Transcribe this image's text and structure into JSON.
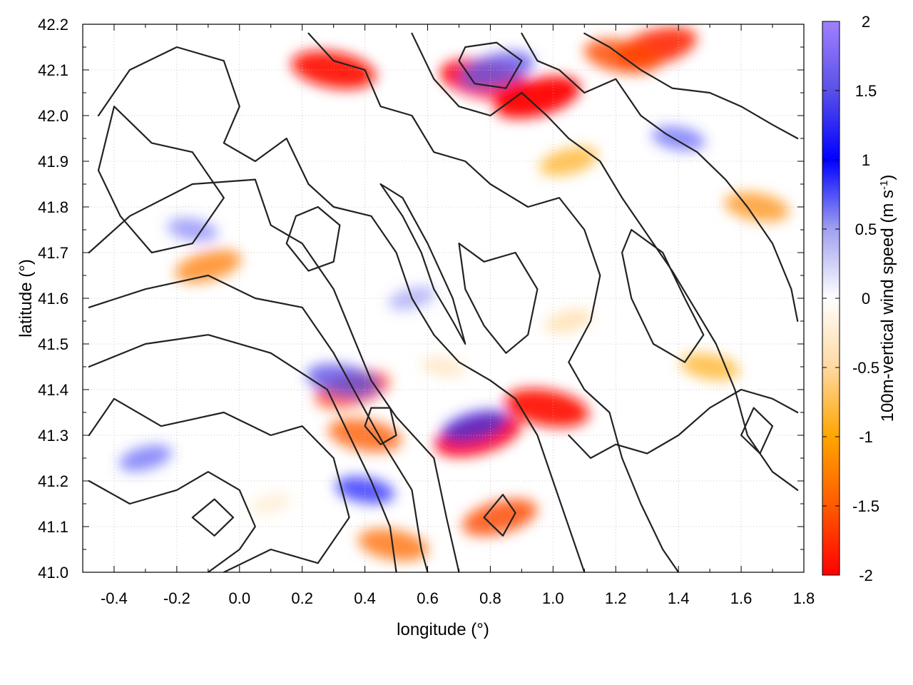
{
  "chart_data": {
    "type": "heatmap",
    "title": "",
    "xlabel": "longitude (°)",
    "ylabel": "latitude (°)",
    "colorbar_label": "100m-vertical wind speed (m s-1)",
    "colorbar_label_parts": {
      "main": "100m-vertical wind speed (m s",
      "sup": "-1",
      "close": ")"
    },
    "xlim": [
      -0.5,
      1.8
    ],
    "ylim": [
      41.0,
      42.2
    ],
    "clim": [
      -2,
      2
    ],
    "x_ticks": [
      -0.4,
      -0.2,
      0.0,
      0.2,
      0.4,
      0.6,
      0.8,
      1.0,
      1.2,
      1.4,
      1.6,
      1.8
    ],
    "x_tick_labels": [
      "-0.4",
      "-0.2",
      "0.0",
      "0.2",
      "0.4",
      "0.6",
      "0.8",
      "1.0",
      "1.2",
      "1.4",
      "1.6",
      "1.8"
    ],
    "y_ticks": [
      41.0,
      41.1,
      41.2,
      41.3,
      41.4,
      41.5,
      41.6,
      41.7,
      41.8,
      41.9,
      42.0,
      42.1,
      42.2
    ],
    "y_tick_labels": [
      "41.0",
      "41.1",
      "41.2",
      "41.3",
      "41.4",
      "41.5",
      "41.6",
      "41.7",
      "41.8",
      "41.9",
      "42.0",
      "42.1",
      "42.2"
    ],
    "cbar_ticks": [
      -2,
      -1.5,
      -1,
      -0.5,
      0,
      0.5,
      1,
      1.5,
      2
    ],
    "cbar_tick_labels": [
      "-2",
      "-1.5",
      "-1",
      "-0.5",
      "0",
      "0.5",
      "1",
      "1.5",
      "2"
    ],
    "colormap": [
      {
        "value": -2,
        "color": "#ff0000"
      },
      {
        "value": -1.5,
        "color": "#ff5a00"
      },
      {
        "value": -1,
        "color": "#ffa500"
      },
      {
        "value": -0.5,
        "color": "#ffd8a0"
      },
      {
        "value": 0,
        "color": "#ffffff"
      },
      {
        "value": 0.5,
        "color": "#a0a0f0"
      },
      {
        "value": 1,
        "color": "#0000ff"
      },
      {
        "value": 1.5,
        "color": "#5a50e8"
      },
      {
        "value": 2,
        "color": "#a080ff"
      }
    ],
    "grid": true,
    "contour_color": "#222222",
    "hotspots": [
      {
        "lon": 0.78,
        "lat": 42.08,
        "value": -2.0
      },
      {
        "lon": 0.95,
        "lat": 42.04,
        "value": -2.0
      },
      {
        "lon": 0.3,
        "lat": 42.1,
        "value": -1.9
      },
      {
        "lon": 1.33,
        "lat": 42.15,
        "value": -1.8
      },
      {
        "lon": 1.22,
        "lat": 42.13,
        "value": -1.6
      },
      {
        "lon": 0.76,
        "lat": 41.3,
        "value": -2.0
      },
      {
        "lon": 0.98,
        "lat": 41.36,
        "value": -1.9
      },
      {
        "lon": 0.36,
        "lat": 41.4,
        "value": -1.6
      },
      {
        "lon": 0.4,
        "lat": 41.3,
        "value": -1.5
      },
      {
        "lon": 0.83,
        "lat": 41.12,
        "value": -1.6
      },
      {
        "lon": 0.49,
        "lat": 41.06,
        "value": -1.4
      },
      {
        "lon": -0.1,
        "lat": 41.67,
        "value": -1.3
      },
      {
        "lon": 1.65,
        "lat": 41.8,
        "value": -1.2
      },
      {
        "lon": 1.05,
        "lat": 41.9,
        "value": -1.0
      },
      {
        "lon": 1.5,
        "lat": 41.45,
        "value": -1.0
      },
      {
        "lon": 0.82,
        "lat": 42.1,
        "value": 1.6
      },
      {
        "lon": 0.33,
        "lat": 41.42,
        "value": 1.5
      },
      {
        "lon": 0.75,
        "lat": 41.32,
        "value": 1.3
      },
      {
        "lon": 0.4,
        "lat": 41.18,
        "value": 1.0
      },
      {
        "lon": -0.3,
        "lat": 41.25,
        "value": 0.8
      },
      {
        "lon": 1.4,
        "lat": 41.95,
        "value": 0.8
      },
      {
        "lon": 0.55,
        "lat": 41.6,
        "value": 0.6
      },
      {
        "lon": -0.15,
        "lat": 41.75,
        "value": 0.7
      },
      {
        "lon": 1.05,
        "lat": 41.55,
        "value": -0.6
      },
      {
        "lon": 0.65,
        "lat": 41.45,
        "value": -0.5
      },
      {
        "lon": 0.1,
        "lat": 41.15,
        "value": -0.4
      }
    ],
    "contours": [
      [
        [
          -0.05,
          41.0
        ],
        [
          0.1,
          41.05
        ],
        [
          0.25,
          41.02
        ],
        [
          0.35,
          41.12
        ],
        [
          0.3,
          41.25
        ],
        [
          0.2,
          41.32
        ],
        [
          0.1,
          41.3
        ],
        [
          -0.05,
          41.35
        ],
        [
          -0.25,
          41.32
        ],
        [
          -0.4,
          41.38
        ],
        [
          -0.48,
          41.3
        ]
      ],
      [
        [
          -0.48,
          41.45
        ],
        [
          -0.3,
          41.5
        ],
        [
          -0.1,
          41.52
        ],
        [
          0.1,
          41.48
        ],
        [
          0.28,
          41.4
        ],
        [
          0.35,
          41.3
        ],
        [
          0.42,
          41.2
        ],
        [
          0.48,
          41.1
        ],
        [
          0.5,
          41.0
        ]
      ],
      [
        [
          -0.48,
          41.58
        ],
        [
          -0.3,
          41.62
        ],
        [
          -0.1,
          41.65
        ],
        [
          0.05,
          41.6
        ],
        [
          0.2,
          41.58
        ],
        [
          0.3,
          41.48
        ],
        [
          0.38,
          41.38
        ],
        [
          0.46,
          41.28
        ],
        [
          0.55,
          41.18
        ],
        [
          0.58,
          41.05
        ],
        [
          0.6,
          41.0
        ]
      ],
      [
        [
          -0.48,
          41.7
        ],
        [
          -0.35,
          41.78
        ],
        [
          -0.15,
          41.85
        ],
        [
          0.05,
          41.86
        ],
        [
          0.1,
          41.76
        ],
        [
          0.2,
          41.72
        ],
        [
          0.3,
          41.62
        ],
        [
          0.36,
          41.52
        ],
        [
          0.42,
          41.42
        ],
        [
          0.5,
          41.34
        ],
        [
          0.62,
          41.25
        ],
        [
          0.66,
          41.12
        ],
        [
          0.7,
          41.0
        ]
      ],
      [
        [
          -0.45,
          42.0
        ],
        [
          -0.35,
          42.1
        ],
        [
          -0.2,
          42.15
        ],
        [
          -0.05,
          42.12
        ],
        [
          0.0,
          42.02
        ],
        [
          -0.05,
          41.94
        ],
        [
          0.05,
          41.9
        ],
        [
          0.15,
          41.95
        ],
        [
          0.22,
          41.85
        ],
        [
          0.3,
          41.8
        ],
        [
          0.42,
          41.78
        ],
        [
          0.5,
          41.7
        ],
        [
          0.55,
          41.6
        ],
        [
          0.62,
          41.52
        ],
        [
          0.7,
          41.46
        ],
        [
          0.8,
          41.42
        ],
        [
          0.88,
          41.38
        ],
        [
          0.95,
          41.3
        ],
        [
          1.0,
          41.2
        ],
        [
          1.05,
          41.1
        ],
        [
          1.1,
          41.0
        ]
      ],
      [
        [
          0.22,
          42.18
        ],
        [
          0.3,
          42.12
        ],
        [
          0.4,
          42.1
        ],
        [
          0.45,
          42.02
        ],
        [
          0.55,
          42.0
        ],
        [
          0.62,
          41.92
        ],
        [
          0.72,
          41.9
        ],
        [
          0.8,
          41.85
        ],
        [
          0.92,
          41.8
        ],
        [
          1.02,
          41.82
        ],
        [
          1.1,
          41.75
        ],
        [
          1.15,
          41.65
        ],
        [
          1.12,
          41.55
        ],
        [
          1.05,
          41.46
        ],
        [
          1.1,
          41.4
        ],
        [
          1.18,
          41.35
        ],
        [
          1.22,
          41.25
        ],
        [
          1.28,
          41.15
        ],
        [
          1.35,
          41.05
        ],
        [
          1.4,
          41.0
        ]
      ],
      [
        [
          0.55,
          42.18
        ],
        [
          0.62,
          42.08
        ],
        [
          0.7,
          42.02
        ],
        [
          0.8,
          42.0
        ],
        [
          0.9,
          42.05
        ],
        [
          0.98,
          42.0
        ],
        [
          1.05,
          41.95
        ],
        [
          1.15,
          41.9
        ],
        [
          1.22,
          41.82
        ],
        [
          1.3,
          41.74
        ],
        [
          1.38,
          41.66
        ],
        [
          1.45,
          41.58
        ],
        [
          1.52,
          41.5
        ],
        [
          1.58,
          41.4
        ],
        [
          1.62,
          41.3
        ],
        [
          1.7,
          41.22
        ],
        [
          1.78,
          41.18
        ]
      ],
      [
        [
          0.9,
          42.18
        ],
        [
          0.95,
          42.12
        ],
        [
          1.02,
          42.1
        ],
        [
          1.1,
          42.05
        ],
        [
          1.2,
          42.08
        ],
        [
          1.28,
          42.0
        ],
        [
          1.36,
          41.96
        ],
        [
          1.46,
          41.92
        ],
        [
          1.55,
          41.86
        ],
        [
          1.62,
          41.8
        ],
        [
          1.7,
          41.72
        ],
        [
          1.76,
          41.62
        ],
        [
          1.78,
          41.55
        ]
      ],
      [
        [
          1.1,
          42.18
        ],
        [
          1.18,
          42.15
        ],
        [
          1.28,
          42.1
        ],
        [
          1.38,
          42.06
        ],
        [
          1.5,
          42.05
        ],
        [
          1.6,
          42.02
        ],
        [
          1.7,
          41.98
        ],
        [
          1.78,
          41.95
        ]
      ],
      [
        [
          -0.48,
          41.2
        ],
        [
          -0.35,
          41.15
        ],
        [
          -0.2,
          41.18
        ],
        [
          -0.1,
          41.22
        ],
        [
          0.0,
          41.18
        ],
        [
          0.05,
          41.1
        ],
        [
          0.0,
          41.05
        ],
        [
          -0.1,
          41.0
        ]
      ],
      [
        [
          -0.4,
          42.02
        ],
        [
          -0.28,
          41.94
        ],
        [
          -0.15,
          41.92
        ],
        [
          -0.05,
          41.82
        ],
        [
          -0.15,
          41.72
        ],
        [
          -0.28,
          41.7
        ],
        [
          -0.38,
          41.78
        ],
        [
          -0.45,
          41.88
        ],
        [
          -0.4,
          42.02
        ]
      ],
      [
        [
          0.45,
          41.85
        ],
        [
          0.52,
          41.78
        ],
        [
          0.58,
          41.7
        ],
        [
          0.62,
          41.62
        ],
        [
          0.68,
          41.55
        ],
        [
          0.72,
          41.5
        ],
        [
          0.68,
          41.6
        ],
        [
          0.6,
          41.72
        ],
        [
          0.52,
          41.82
        ],
        [
          0.45,
          41.85
        ]
      ],
      [
        [
          0.7,
          41.72
        ],
        [
          0.78,
          41.68
        ],
        [
          0.88,
          41.7
        ],
        [
          0.95,
          41.62
        ],
        [
          0.92,
          41.52
        ],
        [
          0.85,
          41.48
        ],
        [
          0.78,
          41.54
        ],
        [
          0.72,
          41.62
        ],
        [
          0.7,
          41.72
        ]
      ],
      [
        [
          1.25,
          41.75
        ],
        [
          1.35,
          41.7
        ],
        [
          1.42,
          41.6
        ],
        [
          1.48,
          41.52
        ],
        [
          1.42,
          41.46
        ],
        [
          1.32,
          41.5
        ],
        [
          1.25,
          41.6
        ],
        [
          1.22,
          41.7
        ],
        [
          1.25,
          41.75
        ]
      ],
      [
        [
          0.7,
          42.12
        ],
        [
          0.75,
          42.07
        ],
        [
          0.85,
          42.06
        ],
        [
          0.9,
          42.12
        ],
        [
          0.82,
          42.16
        ],
        [
          0.72,
          42.15
        ],
        [
          0.7,
          42.12
        ]
      ],
      [
        [
          0.4,
          41.32
        ],
        [
          0.45,
          41.28
        ],
        [
          0.5,
          41.3
        ],
        [
          0.48,
          41.36
        ],
        [
          0.42,
          41.36
        ],
        [
          0.4,
          41.32
        ]
      ],
      [
        [
          0.78,
          41.12
        ],
        [
          0.84,
          41.08
        ],
        [
          0.88,
          41.13
        ],
        [
          0.84,
          41.17
        ],
        [
          0.78,
          41.12
        ]
      ],
      [
        [
          1.6,
          41.3
        ],
        [
          1.66,
          41.26
        ],
        [
          1.7,
          41.32
        ],
        [
          1.64,
          41.36
        ],
        [
          1.6,
          41.3
        ]
      ],
      [
        [
          -0.15,
          41.12
        ],
        [
          -0.08,
          41.08
        ],
        [
          -0.02,
          41.12
        ],
        [
          -0.08,
          41.16
        ],
        [
          -0.15,
          41.12
        ]
      ],
      [
        [
          1.05,
          41.3
        ],
        [
          1.12,
          41.25
        ],
        [
          1.2,
          41.28
        ],
        [
          1.3,
          41.26
        ],
        [
          1.4,
          41.3
        ],
        [
          1.5,
          41.36
        ],
        [
          1.6,
          41.4
        ],
        [
          1.7,
          41.38
        ],
        [
          1.78,
          41.35
        ]
      ],
      [
        [
          0.15,
          41.72
        ],
        [
          0.22,
          41.66
        ],
        [
          0.3,
          41.68
        ],
        [
          0.32,
          41.76
        ],
        [
          0.25,
          41.8
        ],
        [
          0.18,
          41.78
        ],
        [
          0.15,
          41.72
        ]
      ]
    ]
  }
}
